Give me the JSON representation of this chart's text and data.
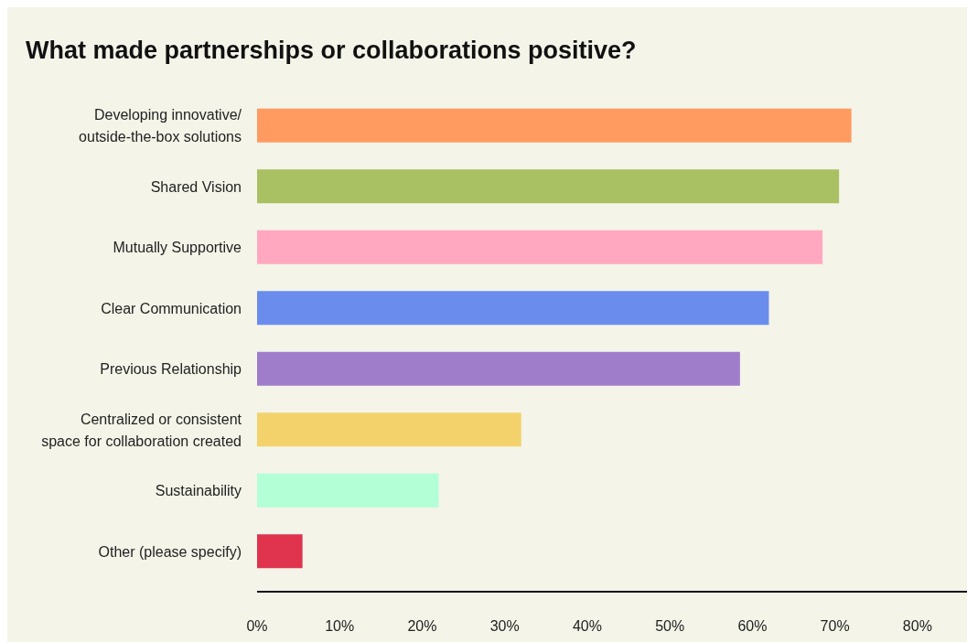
{
  "chart_data": {
    "type": "bar",
    "orientation": "horizontal",
    "title": "What made partnerships or collaborations positive?",
    "categories": [
      "Developing innovative/\noutside-the-box solutions",
      "Shared Vision",
      "Mutually Supportive",
      "Clear Communication",
      "Previous Relationship",
      "Centralized or consistent\nspace for collaboration created",
      "Sustainability",
      "Other (please specify)"
    ],
    "values": [
      72,
      70.5,
      68.5,
      62,
      58.5,
      32,
      22,
      5.5
    ],
    "colors": [
      "#ff9b61",
      "#a9c063",
      "#ffa8bf",
      "#6a8ded",
      "#9f7dcb",
      "#f3d26c",
      "#b3ffd6",
      "#df334e"
    ],
    "xlim": [
      0,
      86
    ],
    "xticks": [
      {
        "value": 0,
        "label": "0%"
      },
      {
        "value": 10,
        "label": "10%"
      },
      {
        "value": 20,
        "label": "20%"
      },
      {
        "value": 30,
        "label": "30%"
      },
      {
        "value": 40,
        "label": "40%"
      },
      {
        "value": 50,
        "label": "50%"
      },
      {
        "value": 60,
        "label": "60%"
      },
      {
        "value": 70,
        "label": "70%"
      },
      {
        "value": 80,
        "label": "80%"
      }
    ],
    "grid": false,
    "legend": false
  }
}
